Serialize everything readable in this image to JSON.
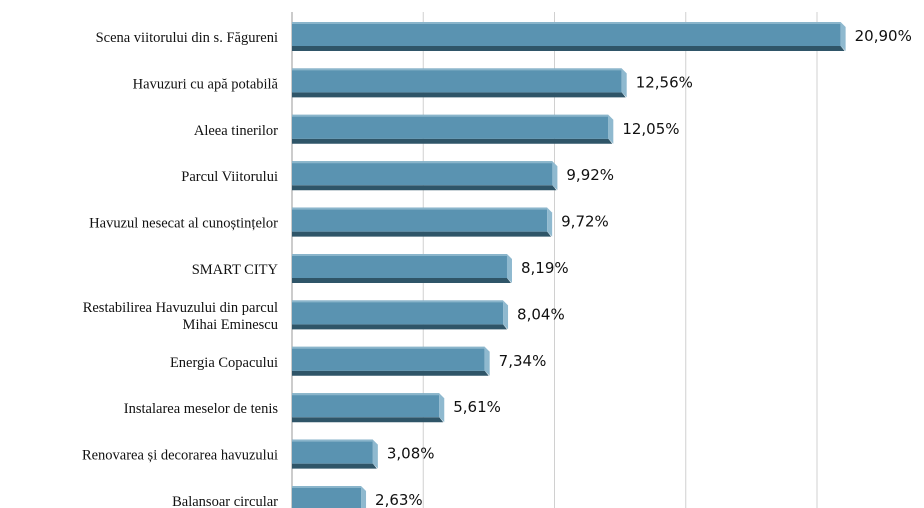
{
  "chart_data": {
    "type": "barh",
    "categories": [
      "Scena viitorului din s. Făgureni",
      "Havuzuri cu apă potabilă",
      "Aleea tinerilor",
      "Parcul Viitorului",
      "Havuzul nesecat al cunoștințelor",
      "SMART CITY",
      "Restabilirea Havuzului din parcul\nMihai Eminescu",
      "Energia Copacului",
      "Instalarea meselor de tenis",
      "Renovarea și decorarea havuzului",
      "Balansoar circular"
    ],
    "values": [
      20.9,
      12.56,
      12.05,
      9.92,
      9.72,
      8.19,
      8.04,
      7.34,
      5.61,
      3.08,
      2.63
    ],
    "value_labels": [
      "20,90%",
      "12,56%",
      "12,05%",
      "9,92%",
      "9,72%",
      "8,19%",
      "8,04%",
      "7,34%",
      "5,61%",
      "3,08%",
      "2,63%"
    ],
    "color": "#5a93b1",
    "xlim": [
      0,
      24
    ],
    "xticks": [
      0,
      5,
      10,
      15,
      20
    ],
    "grid": true
  }
}
